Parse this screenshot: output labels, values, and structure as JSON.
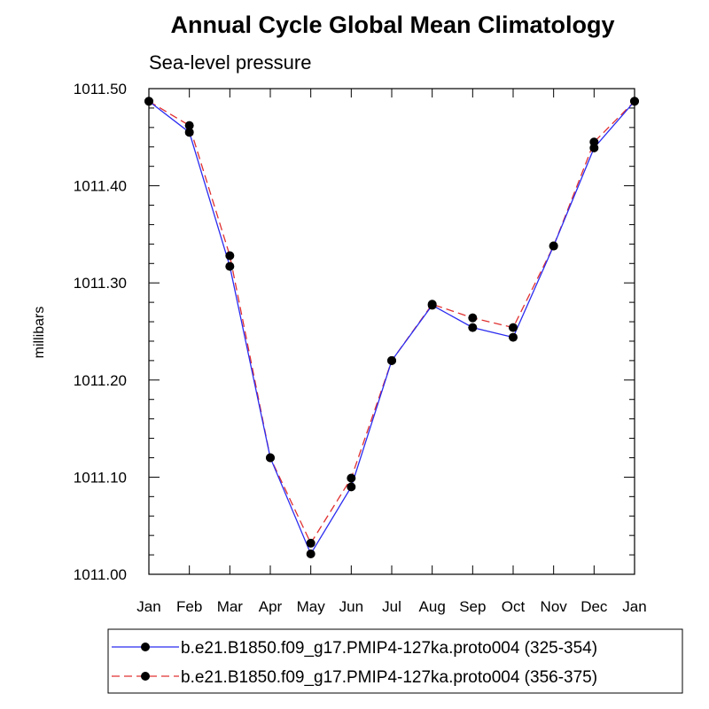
{
  "chart_data": {
    "type": "line",
    "title": "Annual Cycle Global Mean Climatology",
    "subtitle": "Sea-level pressure",
    "xlabel": "",
    "ylabel": "millibars",
    "categories": [
      "Jan",
      "Feb",
      "Mar",
      "Apr",
      "May",
      "Jun",
      "Jul",
      "Aug",
      "Sep",
      "Oct",
      "Nov",
      "Dec",
      "Jan"
    ],
    "yticks": [
      "1011.00",
      "1011.10",
      "1011.20",
      "1011.30",
      "1011.40",
      "1011.50"
    ],
    "ylim": [
      1011.0,
      1011.5
    ],
    "grid": false,
    "legend_position": "bottom",
    "series": [
      {
        "name": "b.e21.B1850.f09_g17.PMIP4-127ka.proto004 (325-354)",
        "color": "#2b2bf0",
        "dash": "solid",
        "values": [
          1011.487,
          1011.455,
          1011.317,
          1011.12,
          1011.021,
          1011.09,
          1011.22,
          1011.277,
          1011.254,
          1011.244,
          1011.338,
          1011.439,
          1011.487
        ]
      },
      {
        "name": "b.e21.B1850.f09_g17.PMIP4-127ka.proto004 (356-375)",
        "color": "#e03030",
        "dash": "dashed",
        "values": [
          1011.487,
          1011.462,
          1011.328,
          1011.12,
          1011.032,
          1011.099,
          1011.22,
          1011.278,
          1011.264,
          1011.254,
          1011.338,
          1011.445,
          1011.487
        ]
      }
    ]
  }
}
